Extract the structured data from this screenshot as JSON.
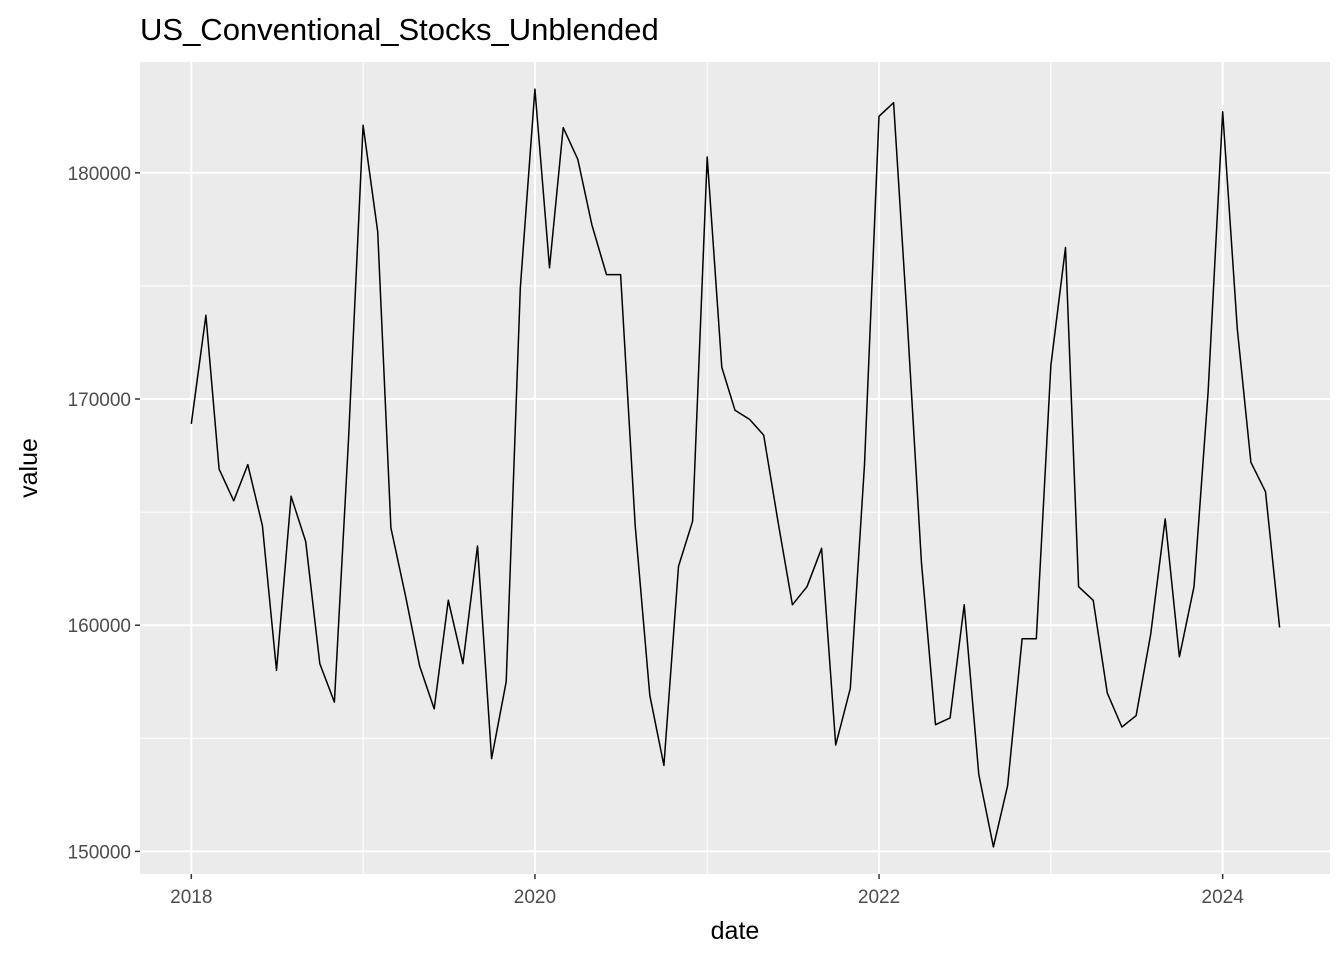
{
  "chart_data": {
    "type": "line",
    "title": "US_Conventional_Stocks_Unblended",
    "xlabel": "date",
    "ylabel": "value",
    "x_ticks": [
      "2018",
      "2020",
      "2022",
      "2024"
    ],
    "y_ticks": [
      "150000",
      "160000",
      "170000",
      "180000"
    ],
    "xlim": [
      "2017-09-14",
      "2024-08-16"
    ],
    "ylim": [
      149000,
      184900
    ],
    "grid": true,
    "background": "#ebebeb",
    "line_color": "#000000",
    "series": [
      {
        "x": [
          "2018-01",
          "2018-02",
          "2018-03",
          "2018-04",
          "2018-05",
          "2018-06",
          "2018-07",
          "2018-08",
          "2018-09",
          "2018-10",
          "2018-11",
          "2018-12",
          "2019-01",
          "2019-02",
          "2019-03",
          "2019-04",
          "2019-05",
          "2019-06",
          "2019-07",
          "2019-08",
          "2019-09",
          "2019-10",
          "2019-11",
          "2019-12",
          "2020-01",
          "2020-02",
          "2020-03",
          "2020-04",
          "2020-05",
          "2020-06",
          "2020-07",
          "2020-08",
          "2020-09",
          "2020-10",
          "2020-11",
          "2020-12",
          "2021-01",
          "2021-02",
          "2021-03",
          "2021-04",
          "2021-05",
          "2021-06",
          "2021-07",
          "2021-08",
          "2021-09",
          "2021-10",
          "2021-11",
          "2021-12",
          "2022-01",
          "2022-02",
          "2022-03",
          "2022-04",
          "2022-05",
          "2022-06",
          "2022-07",
          "2022-08",
          "2022-09",
          "2022-10",
          "2022-11",
          "2022-12",
          "2023-01",
          "2023-02",
          "2023-03",
          "2023-04",
          "2023-05",
          "2023-06",
          "2023-07",
          "2023-08",
          "2023-09",
          "2023-10",
          "2023-11",
          "2023-12",
          "2024-01",
          "2024-02",
          "2024-03",
          "2024-04",
          "2024-05"
        ],
        "values": [
          168900,
          173700,
          166900,
          165500,
          167100,
          164400,
          158000,
          165700,
          163700,
          158300,
          156600,
          168200,
          182100,
          177400,
          164300,
          161300,
          158200,
          156300,
          161100,
          158300,
          163500,
          154100,
          157500,
          174900,
          183700,
          175800,
          182000,
          180600,
          177700,
          175500,
          175500,
          164400,
          156900,
          153800,
          162600,
          164600,
          180700,
          171400,
          169500,
          169100,
          168400,
          164500,
          160900,
          161700,
          163400,
          154700,
          157200,
          167100,
          182500,
          183100,
          173800,
          162800,
          155600,
          155900,
          160900,
          153400,
          150200,
          152900,
          159400,
          159400,
          171500,
          176700,
          161700,
          161100,
          157000,
          155500,
          156000,
          159600,
          164700,
          158600,
          161700,
          170300,
          182700,
          173100,
          167200,
          165900,
          159900
        ]
      }
    ]
  }
}
